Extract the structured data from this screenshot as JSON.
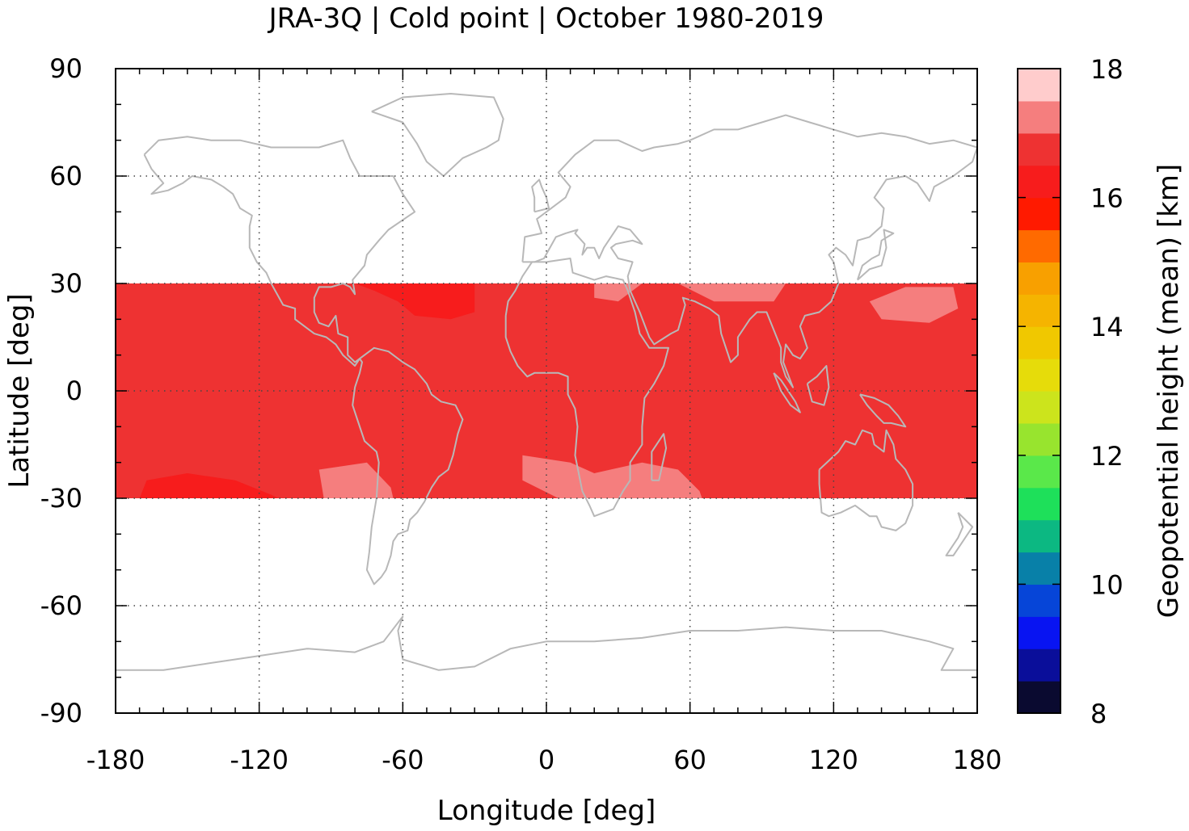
{
  "title": "JRA-3Q | Cold point | October 1980-2019",
  "chart_data": {
    "type": "heatmap",
    "title": "JRA-3Q | Cold point | October 1980-2019",
    "xlabel": "Longitude [deg]",
    "ylabel": "Latitude [deg]",
    "xlim": [
      -180,
      180
    ],
    "ylim": [
      -90,
      90
    ],
    "x_ticks": [
      -180,
      -120,
      -60,
      0,
      60,
      120,
      180
    ],
    "y_ticks": [
      90,
      60,
      30,
      0,
      -30,
      -60,
      -90
    ],
    "x_tick_labels": [
      "-180",
      "-120",
      "-60",
      "0",
      "60",
      "120",
      "180"
    ],
    "y_tick_labels": [
      "90",
      "60",
      "30",
      "0",
      "-30",
      "-60",
      "-90"
    ],
    "data_lat_range": [
      -30,
      30
    ],
    "grid": "dotted",
    "background_field_value": 16.75,
    "colorbar": {
      "label": "Geopotential height (mean) [km]",
      "min": 8,
      "max": 18,
      "step": 0.5,
      "tick_values": [
        8,
        10,
        12,
        14,
        16,
        18
      ],
      "tick_labels": [
        "8",
        "10",
        "12",
        "14",
        "16",
        "18"
      ],
      "colors": [
        "#0a0a30",
        "#0a0e9a",
        "#0814f2",
        "#0645d8",
        "#0880a8",
        "#0cb882",
        "#1ee05a",
        "#5ae84a",
        "#98e42e",
        "#cce41c",
        "#e6dc0a",
        "#f0c800",
        "#f5b400",
        "#f8a000",
        "#ff6a00",
        "#ff1a00",
        "#f71c1c",
        "#ee3232",
        "#f57e7e",
        "#ffcccc"
      ]
    },
    "regions": [
      {
        "value": 16.25,
        "color": "#f71c1c",
        "lon_lat": [
          [
            -80,
            30
          ],
          [
            -30,
            30
          ],
          [
            -30,
            22
          ],
          [
            -40,
            20
          ],
          [
            -55,
            21
          ],
          [
            -62,
            25
          ],
          [
            -72,
            28
          ],
          [
            -80,
            30
          ]
        ]
      },
      {
        "value": 16.25,
        "color": "#f71c1c",
        "lon_lat": [
          [
            -167,
            -25
          ],
          [
            -150,
            -23
          ],
          [
            -130,
            -25
          ],
          [
            -115,
            -29
          ],
          [
            -112,
            -30
          ],
          [
            -170,
            -30
          ],
          [
            -167,
            -25
          ]
        ]
      },
      {
        "value": 17.25,
        "color": "#f57e7e",
        "lon_lat": [
          [
            20,
            30
          ],
          [
            40,
            30
          ],
          [
            30,
            25
          ],
          [
            20,
            26
          ],
          [
            20,
            30
          ]
        ]
      },
      {
        "value": 17.25,
        "color": "#f57e7e",
        "lon_lat": [
          [
            55,
            30
          ],
          [
            100,
            30
          ],
          [
            95,
            25
          ],
          [
            70,
            25
          ],
          [
            55,
            30
          ]
        ]
      },
      {
        "value": 17.25,
        "color": "#f57e7e",
        "lon_lat": [
          [
            135,
            25
          ],
          [
            150,
            29
          ],
          [
            170,
            29
          ],
          [
            172,
            23
          ],
          [
            160,
            19
          ],
          [
            140,
            20
          ],
          [
            135,
            25
          ]
        ]
      },
      {
        "value": 17.25,
        "color": "#f57e7e",
        "lon_lat": [
          [
            -95,
            -22
          ],
          [
            -75,
            -20
          ],
          [
            -65,
            -27
          ],
          [
            -64,
            -30
          ],
          [
            -93,
            -30
          ],
          [
            -95,
            -22
          ]
        ]
      },
      {
        "value": 17.25,
        "color": "#f57e7e",
        "lon_lat": [
          [
            -10,
            -18
          ],
          [
            10,
            -20
          ],
          [
            20,
            -23
          ],
          [
            40,
            -20
          ],
          [
            55,
            -22
          ],
          [
            64,
            -28
          ],
          [
            65,
            -30
          ],
          [
            5,
            -30
          ],
          [
            -10,
            -25
          ],
          [
            -10,
            -18
          ]
        ]
      }
    ],
    "coastline_color": "#b8b8b8"
  }
}
